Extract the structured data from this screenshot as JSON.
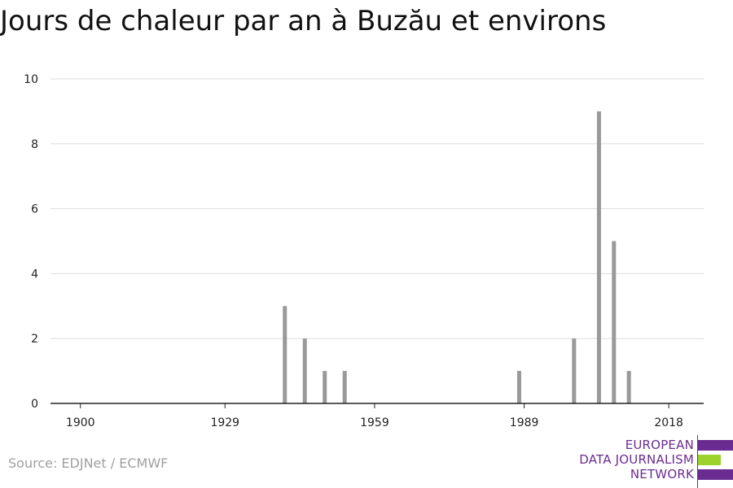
{
  "chart_data": {
    "type": "bar",
    "title": "Jours de chaleur par an à Buzău et environs",
    "xlabel": "",
    "ylabel": "",
    "xlim": [
      1894,
      2025
    ],
    "ylim": [
      0,
      10
    ],
    "yticks": [
      0,
      2,
      4,
      6,
      8,
      10
    ],
    "xticks": [
      1900,
      1929,
      1959,
      1989,
      2018
    ],
    "grid": true,
    "bar_color": "#999999",
    "points": [
      {
        "x": 1941,
        "y": 3
      },
      {
        "x": 1945,
        "y": 2
      },
      {
        "x": 1949,
        "y": 1
      },
      {
        "x": 1953,
        "y": 1
      },
      {
        "x": 1988,
        "y": 1
      },
      {
        "x": 1999,
        "y": 2
      },
      {
        "x": 2004,
        "y": 9
      },
      {
        "x": 2007,
        "y": 5
      },
      {
        "x": 2010,
        "y": 1
      }
    ]
  },
  "source": "Source: EDJNet / ECMWF",
  "logo": {
    "line1": "EUROPEAN",
    "line2": "DATA JOURNALISM",
    "line3": "NETWORK",
    "purple": "#6b2c91",
    "green": "#9bd32b"
  }
}
